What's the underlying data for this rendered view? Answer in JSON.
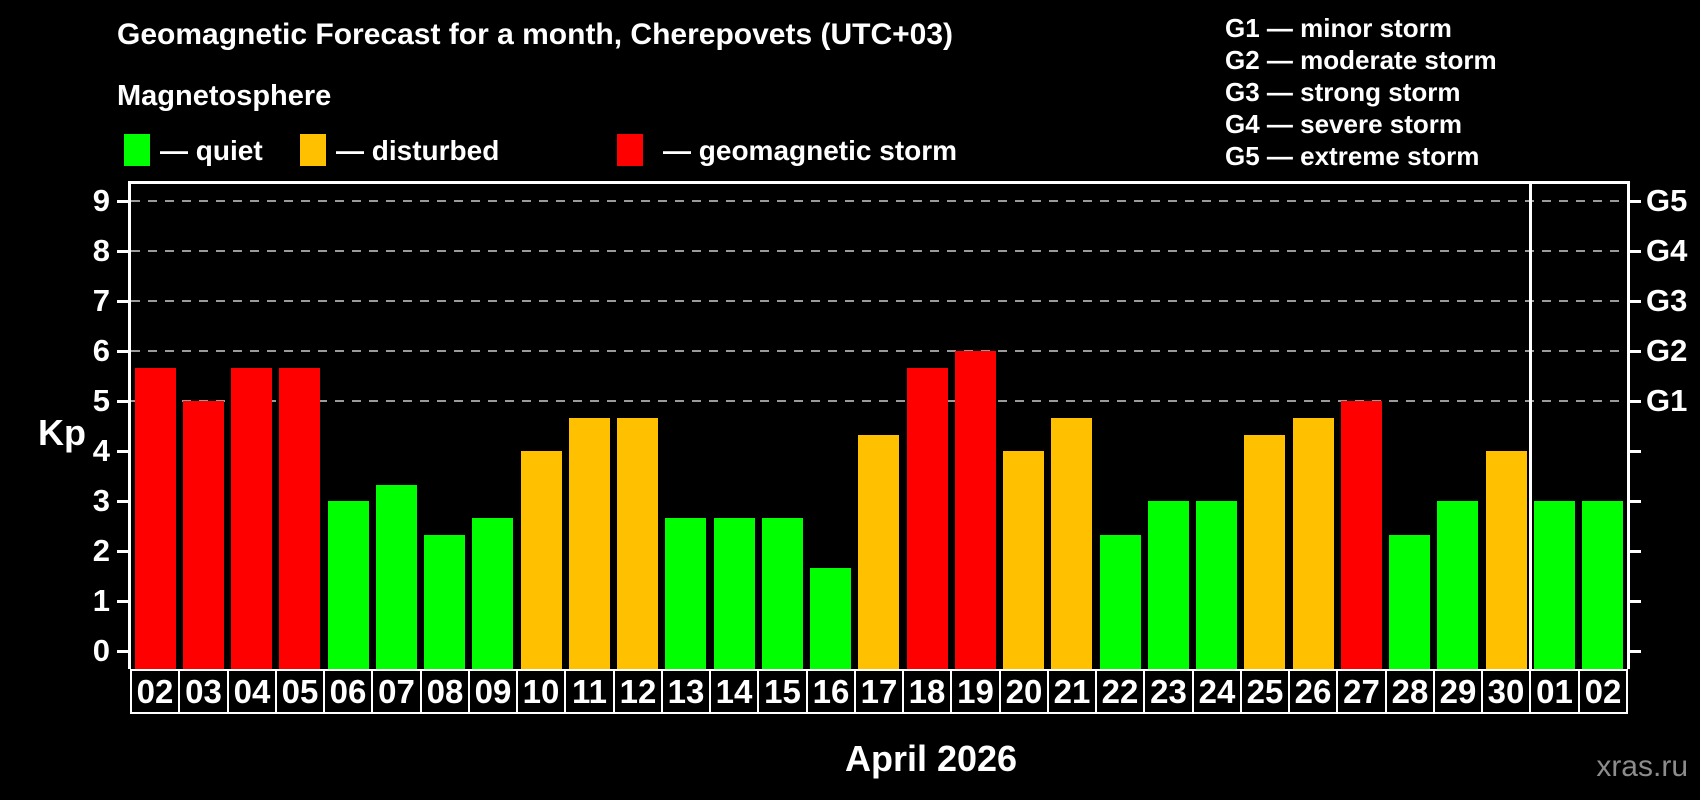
{
  "page": {
    "title": "Geomagnetic Forecast for a month, Cherepovets (UTC+03)",
    "subtitle": "Magnetosphere",
    "watermark": "xras.ru"
  },
  "legend": {
    "items": [
      {
        "name": "quiet",
        "label": "— quiet",
        "color": "#00ff00"
      },
      {
        "name": "disturbed",
        "label": "— disturbed",
        "color": "#ffc000"
      },
      {
        "name": "storm",
        "label": "— geomagnetic storm",
        "color": "#ff0000"
      }
    ]
  },
  "g_scale_legend": {
    "items": [
      "G1 — minor storm",
      "G2 — moderate storm",
      "G3 — strong storm",
      "G4 — severe storm",
      "G5 — extreme storm"
    ]
  },
  "chart_data": {
    "type": "bar",
    "title": "Geomagnetic Forecast for a month, Cherepovets (UTC+03)",
    "ylabel": "Kp",
    "xlabel": "April 2026",
    "month_label": "April 2026",
    "ylim": [
      0,
      9
    ],
    "y_ticks": [
      0,
      1,
      2,
      3,
      4,
      5,
      6,
      7,
      8,
      9
    ],
    "gridlines_at_kp": [
      5,
      6,
      7,
      8,
      9
    ],
    "grid": "dashed horizontal lines only at Kp 5-9",
    "legend_position": "top-left",
    "right_axis": [
      {
        "kp": 5,
        "label": "G1"
      },
      {
        "kp": 6,
        "label": "G2"
      },
      {
        "kp": 7,
        "label": "G3"
      },
      {
        "kp": 8,
        "label": "G4"
      },
      {
        "kp": 9,
        "label": "G5"
      }
    ],
    "categories": [
      "02",
      "03",
      "04",
      "05",
      "06",
      "07",
      "08",
      "09",
      "10",
      "11",
      "12",
      "13",
      "14",
      "15",
      "16",
      "17",
      "18",
      "19",
      "20",
      "21",
      "22",
      "23",
      "24",
      "25",
      "26",
      "27",
      "28",
      "29",
      "30",
      "01",
      "02"
    ],
    "values": [
      5.67,
      5,
      5.67,
      5.67,
      3,
      3.33,
      2.33,
      2.67,
      4,
      4.67,
      4.67,
      2.67,
      2.67,
      2.67,
      1.67,
      4.33,
      5.67,
      6,
      4,
      4.67,
      2.33,
      3,
      3,
      4.33,
      4.67,
      5,
      2.33,
      3,
      4,
      3,
      3
    ],
    "states": [
      "storm",
      "storm",
      "storm",
      "storm",
      "quiet",
      "quiet",
      "quiet",
      "quiet",
      "disturbed",
      "disturbed",
      "disturbed",
      "quiet",
      "quiet",
      "quiet",
      "quiet",
      "disturbed",
      "storm",
      "storm",
      "disturbed",
      "disturbed",
      "quiet",
      "quiet",
      "quiet",
      "disturbed",
      "disturbed",
      "storm",
      "quiet",
      "quiet",
      "disturbed",
      "quiet",
      "quiet"
    ],
    "month_boundary_after_index": 28
  },
  "colors": {
    "background": "#000000",
    "quiet": "#00ff00",
    "disturbed": "#ffc000",
    "storm": "#ff0000",
    "axis": "#ffffff",
    "grid": "#9a9a9a",
    "watermark": "#8c8c8c"
  }
}
